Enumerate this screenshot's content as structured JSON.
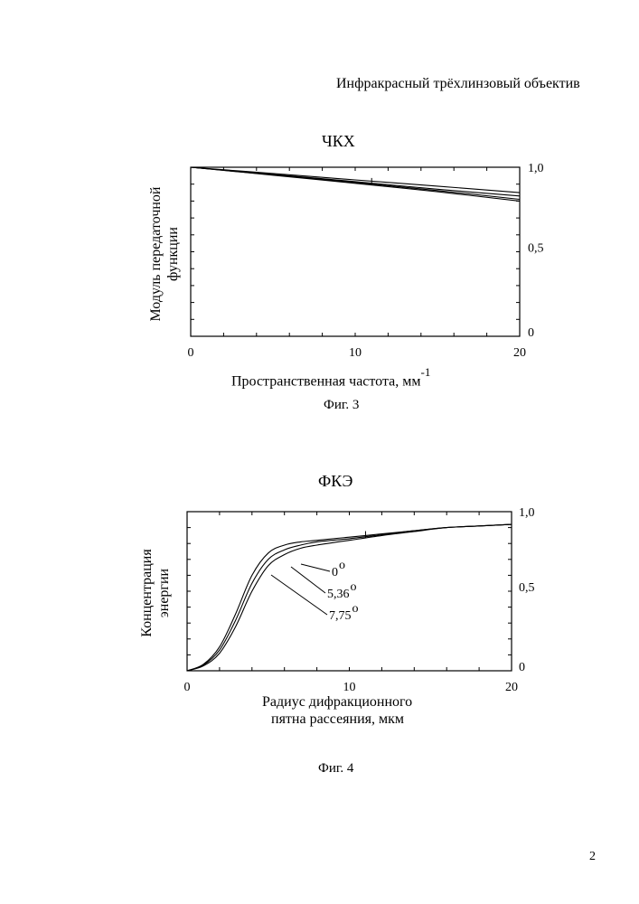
{
  "header": {
    "title": "Инфракрасный трёхлинзовый объектив"
  },
  "page_number": "2",
  "charts_text": {
    "fig3": {
      "title": "ЧКХ",
      "ylabel_line1": "Модуль передаточной",
      "ylabel_line2": "функции",
      "xlabel": "Пространственная частота, мм",
      "xlabel_sup": "-1",
      "caption": "Фиг. 3"
    },
    "fig4": {
      "title": "ФКЭ",
      "ylabel_line1": "Концентрация",
      "ylabel_line2": "энергии",
      "xlabel_line1": "Радиус дифракционного",
      "xlabel_line2": "пятна рассеяния, мкм",
      "caption": "Фиг. 4"
    }
  },
  "chart_data": [
    {
      "type": "line",
      "title": "ЧКХ",
      "xlabel": "Пространственная частота, мм-1",
      "ylabel": "Модуль передаточной функции",
      "xlim": [
        0,
        20
      ],
      "ylim": [
        0,
        1.0
      ],
      "x_ticks": [
        "0",
        "10",
        "20"
      ],
      "y_ticks": [
        "0",
        "0,5",
        "1,0"
      ],
      "series": [
        {
          "name": "curve-1",
          "x": [
            0,
            5,
            10,
            15,
            20
          ],
          "y": [
            1.0,
            0.963,
            0.925,
            0.888,
            0.85
          ]
        },
        {
          "name": "curve-2",
          "x": [
            0,
            5,
            10,
            15,
            20
          ],
          "y": [
            1.0,
            0.958,
            0.915,
            0.87,
            0.83
          ]
        },
        {
          "name": "curve-3",
          "x": [
            0,
            5,
            10,
            15,
            20
          ],
          "y": [
            1.0,
            0.955,
            0.91,
            0.862,
            0.81
          ]
        },
        {
          "name": "curve-4",
          "x": [
            0,
            5,
            10,
            15,
            20
          ],
          "y": [
            1.0,
            0.953,
            0.905,
            0.855,
            0.8
          ]
        }
      ]
    },
    {
      "type": "line",
      "title": "ФКЭ",
      "xlabel": "Радиус дифракционного пятна рассеяния, мкм",
      "ylabel": "Концентрация энергии",
      "xlim": [
        0,
        20
      ],
      "ylim": [
        0,
        1.0
      ],
      "x_ticks": [
        "0",
        "10",
        "20"
      ],
      "y_ticks": [
        "0",
        "0,5",
        "1,0"
      ],
      "series": [
        {
          "name": "0°",
          "label_text": "0",
          "label_sup": "o",
          "x": [
            0,
            1,
            2,
            3,
            4,
            5,
            6,
            7,
            8,
            10,
            12,
            14,
            16,
            18,
            20
          ],
          "y": [
            0,
            0.04,
            0.15,
            0.36,
            0.6,
            0.74,
            0.79,
            0.81,
            0.82,
            0.84,
            0.86,
            0.88,
            0.9,
            0.91,
            0.92
          ]
        },
        {
          "name": "5,36°",
          "label_text": "5,36",
          "label_sup": "o",
          "x": [
            0,
            1,
            2,
            3,
            4,
            5,
            6,
            7,
            8,
            10,
            12,
            14,
            16,
            18,
            20
          ],
          "y": [
            0,
            0.035,
            0.13,
            0.32,
            0.55,
            0.7,
            0.76,
            0.79,
            0.81,
            0.83,
            0.855,
            0.88,
            0.9,
            0.91,
            0.92
          ]
        },
        {
          "name": "7,75°",
          "label_text": "7,75",
          "label_sup": "o",
          "x": [
            0,
            1,
            2,
            3,
            4,
            5,
            6,
            7,
            8,
            10,
            12,
            14,
            16,
            18,
            20
          ],
          "y": [
            0,
            0.03,
            0.11,
            0.28,
            0.5,
            0.66,
            0.73,
            0.77,
            0.79,
            0.82,
            0.85,
            0.875,
            0.9,
            0.91,
            0.92
          ]
        }
      ]
    }
  ]
}
